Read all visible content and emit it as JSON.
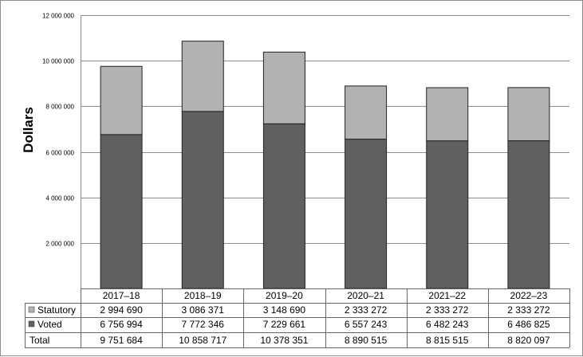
{
  "chart_data": {
    "type": "bar",
    "stacked": true,
    "ylabel": "Dollars",
    "ylim": [
      0,
      12000000
    ],
    "yticks": [
      2000000,
      4000000,
      6000000,
      8000000,
      10000000,
      12000000
    ],
    "ytick_labels": [
      "2 000 000",
      "4 000 000",
      "6 000 000",
      "8 000 000",
      "10 000 000",
      "12 000 000"
    ],
    "grid": true,
    "categories": [
      "2017–18",
      "2018–19",
      "2019–20",
      "2020–21",
      "2021–22",
      "2022–23"
    ],
    "series": [
      {
        "name": "Voted",
        "color": "#606060",
        "values": [
          6756994,
          7772346,
          7229661,
          6557243,
          6482243,
          6486825
        ],
        "labels": [
          "6 756 994",
          "7 772 346",
          "7 229 661",
          "6 557 243",
          "6 482 243",
          "6 486 825"
        ]
      },
      {
        "name": "Statutory",
        "color": "#b2b2b2",
        "values": [
          2994690,
          3086371,
          3148690,
          2333272,
          2333272,
          2333272
        ],
        "labels": [
          "2 994 690",
          "3 086 371",
          "3 148 690",
          "2 333 272",
          "2 333 272",
          "2 333 272"
        ]
      }
    ],
    "table": {
      "row_order": [
        "Statutory",
        "Voted"
      ],
      "total_label": "Total",
      "totals": [
        9751684,
        10858717,
        10378351,
        8890515,
        8815515,
        8820097
      ],
      "total_labels": [
        "9 751 684",
        "10 858 717",
        "10 378 351",
        "8 890 515",
        "8 815 515",
        "8 820 097"
      ]
    }
  }
}
